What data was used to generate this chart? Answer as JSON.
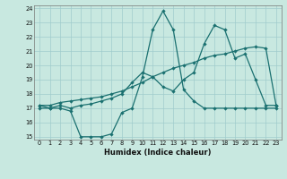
{
  "xlabel": "Humidex (Indice chaleur)",
  "xlim_min": -0.5,
  "xlim_max": 23.5,
  "ylim_min": 14.8,
  "ylim_max": 24.2,
  "yticks": [
    15,
    16,
    17,
    18,
    19,
    20,
    21,
    22,
    23,
    24
  ],
  "xticks": [
    0,
    1,
    2,
    3,
    4,
    5,
    6,
    7,
    8,
    9,
    10,
    11,
    12,
    13,
    14,
    15,
    16,
    17,
    18,
    19,
    20,
    21,
    22,
    23
  ],
  "bg_color": "#c8e8e0",
  "grid_color": "#a0cccc",
  "line_color": "#1a7070",
  "line1_x": [
    0,
    1,
    2,
    3,
    4,
    5,
    6,
    7,
    8,
    9,
    10,
    11,
    12,
    13,
    14,
    15,
    16,
    17,
    18,
    19,
    20,
    21,
    22,
    23
  ],
  "line1_y": [
    17.0,
    17.0,
    17.0,
    16.8,
    15.0,
    15.0,
    15.0,
    15.2,
    16.7,
    17.0,
    19.2,
    22.5,
    23.8,
    22.5,
    18.3,
    17.5,
    17.0,
    17.0,
    17.0,
    17.0,
    17.0,
    17.0,
    17.0,
    17.0
  ],
  "line2_x": [
    0,
    1,
    2,
    3,
    4,
    5,
    6,
    7,
    8,
    9,
    10,
    11,
    12,
    13,
    14,
    15,
    16,
    17,
    18,
    19,
    20,
    21,
    22,
    23
  ],
  "line2_y": [
    17.2,
    17.0,
    17.2,
    17.0,
    17.2,
    17.3,
    17.5,
    17.7,
    18.0,
    18.8,
    19.5,
    19.2,
    18.5,
    18.2,
    19.0,
    19.5,
    21.5,
    22.8,
    22.5,
    20.5,
    20.8,
    19.0,
    17.2,
    17.2
  ],
  "line3_x": [
    0,
    1,
    2,
    3,
    4,
    5,
    6,
    7,
    8,
    9,
    10,
    11,
    12,
    13,
    14,
    15,
    16,
    17,
    18,
    19,
    20,
    21,
    22,
    23
  ],
  "line3_y": [
    17.2,
    17.2,
    17.4,
    17.5,
    17.6,
    17.7,
    17.8,
    18.0,
    18.2,
    18.5,
    18.8,
    19.2,
    19.5,
    19.8,
    20.0,
    20.2,
    20.5,
    20.7,
    20.8,
    21.0,
    21.2,
    21.3,
    21.2,
    17.2
  ]
}
